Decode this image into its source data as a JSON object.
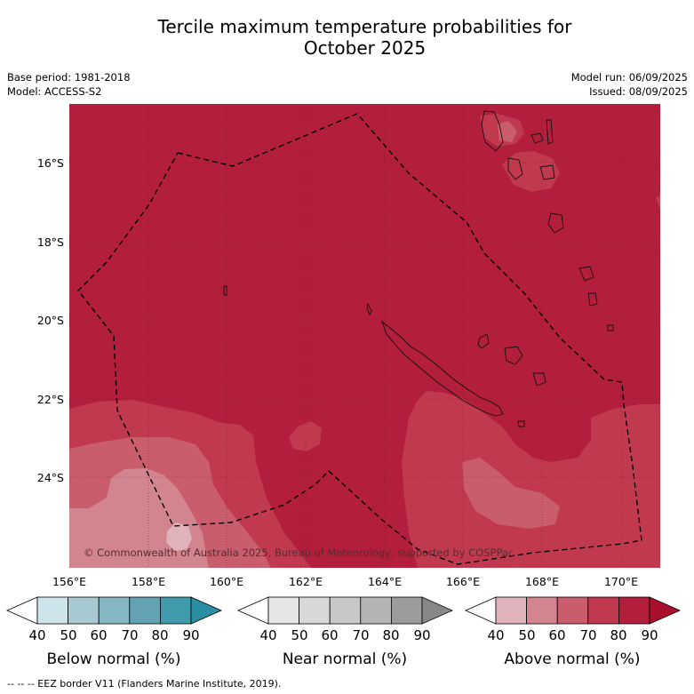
{
  "title": {
    "line1": "Tercile maximum temperature probabilities for",
    "line2": "October 2025"
  },
  "meta": {
    "base_period": "Base period: 1981-2018",
    "model": "Model: ACCESS-S2",
    "model_run": "Model run: 06/09/2025",
    "issued": "Issued: 08/09/2025"
  },
  "map": {
    "lat_labels": [
      "16°S",
      "18°S",
      "20°S",
      "22°S",
      "24°S"
    ],
    "lon_labels": [
      "156°E",
      "158°E",
      "160°E",
      "162°E",
      "164°E",
      "166°E",
      "168°E",
      "170°E"
    ],
    "credit": "© Commonwealth of Australia 2025, Bureau of Meteorology, supported by COSPPac",
    "colors": {
      "above_90": "#b21e3b",
      "above_80": "#c0394f",
      "above_70": "#c95d6b",
      "above_60": "#d2858e",
      "above_50": "#dfb3b9"
    }
  },
  "colorbars": [
    {
      "title": "Below normal (%)",
      "ticks": [
        "40",
        "50",
        "60",
        "70",
        "80",
        "90"
      ],
      "colors": [
        "#ffffff",
        "#cde4ea",
        "#a7cad2",
        "#85b6c2",
        "#62a2b2",
        "#3f9aab",
        "#2a8fa3"
      ]
    },
    {
      "title": "Near normal (%)",
      "ticks": [
        "40",
        "50",
        "60",
        "70",
        "80",
        "90"
      ],
      "colors": [
        "#ffffff",
        "#e6e6e6",
        "#d8d8d8",
        "#c8c8c8",
        "#b4b4b4",
        "#9c9c9c",
        "#888888"
      ]
    },
    {
      "title": "Above normal (%)",
      "ticks": [
        "40",
        "50",
        "60",
        "70",
        "80",
        "90"
      ],
      "colors": [
        "#ffffff",
        "#dfb3b9",
        "#d2858e",
        "#c95d6b",
        "#c0394f",
        "#b21e3b",
        "#a8102e"
      ]
    }
  ],
  "footer": "--  --  -- EEZ border V11 (Flanders Marine Institute, 2019)."
}
